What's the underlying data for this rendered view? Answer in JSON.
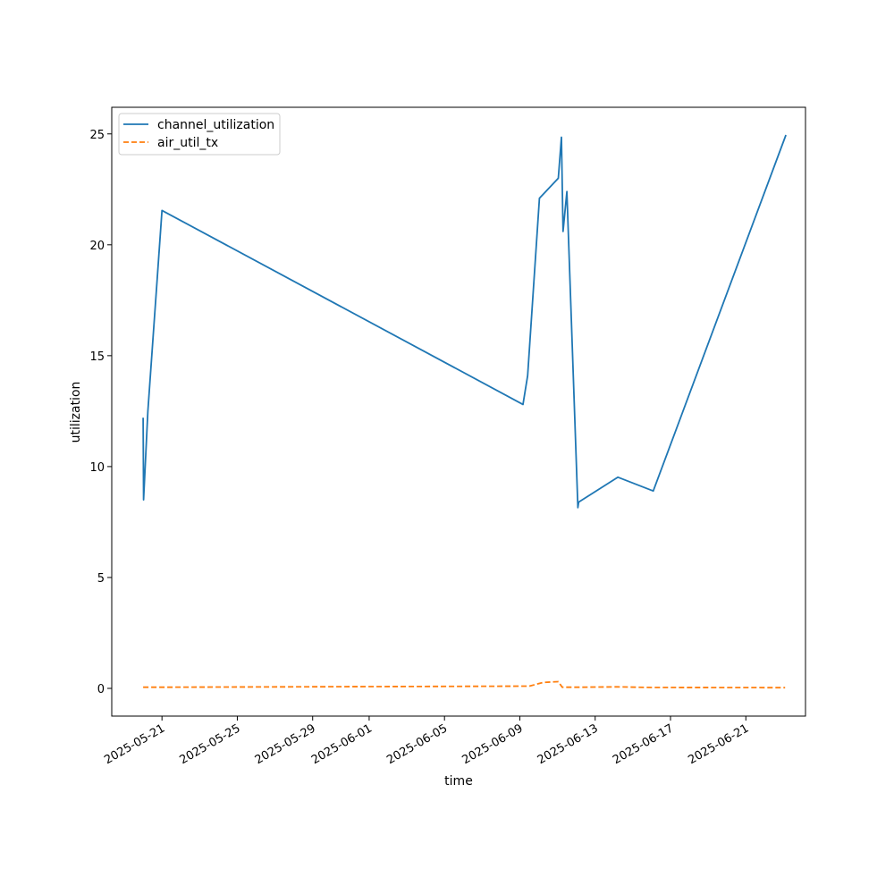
{
  "chart_data": {
    "type": "line",
    "xlabel": "time",
    "ylabel": "utilization",
    "x_axis_type": "date",
    "xlim": [
      "2025-05-18T08:00",
      "2025-06-24T04:00"
    ],
    "ylim": [
      -1.25,
      26.2
    ],
    "x_ticks": [
      "2025-05-21",
      "2025-05-25",
      "2025-05-29",
      "2025-06-01",
      "2025-06-05",
      "2025-06-09",
      "2025-06-13",
      "2025-06-17",
      "2025-06-21"
    ],
    "y_ticks": [
      "0",
      "5",
      "10",
      "15",
      "20",
      "25"
    ],
    "y_tick_values": [
      0,
      5,
      10,
      15,
      20,
      25
    ],
    "grid": false,
    "legend_position": "top-left",
    "colors": {
      "channel_utilization": "#1f77b4",
      "air_util_tx": "#ff7f0e"
    },
    "series": [
      {
        "name": "channel_utilization",
        "style": "solid",
        "points": [
          [
            "2025-05-20T00:00",
            12.2
          ],
          [
            "2025-05-20T00:30",
            8.5
          ],
          [
            "2025-05-20T06:00",
            12.5
          ],
          [
            "2025-05-20T18:00",
            18.5
          ],
          [
            "2025-05-21T00:00",
            21.55
          ],
          [
            "2025-06-09T04:00",
            12.8
          ],
          [
            "2025-06-09T10:00",
            14.1
          ],
          [
            "2025-06-10T01:00",
            22.1
          ],
          [
            "2025-06-11T01:00",
            23.0
          ],
          [
            "2025-06-11T05:00",
            24.85
          ],
          [
            "2025-06-11T07:00",
            20.6
          ],
          [
            "2025-06-11T12:00",
            22.4
          ],
          [
            "2025-06-12T02:00",
            8.15
          ],
          [
            "2025-06-12T03:00",
            8.4
          ],
          [
            "2025-06-14T05:00",
            9.52
          ],
          [
            "2025-06-16T02:00",
            8.9
          ],
          [
            "2025-06-23T03:00",
            24.95
          ]
        ]
      },
      {
        "name": "air_util_tx",
        "style": "dashed",
        "points": [
          [
            "2025-05-20T00:00",
            0.05
          ],
          [
            "2025-05-21T00:00",
            0.05
          ],
          [
            "2025-06-09T12:00",
            0.1
          ],
          [
            "2025-06-10T06:00",
            0.27
          ],
          [
            "2025-06-11T01:00",
            0.3
          ],
          [
            "2025-06-11T06:00",
            0.05
          ],
          [
            "2025-06-12T04:00",
            0.05
          ],
          [
            "2025-06-14T04:00",
            0.07
          ],
          [
            "2025-06-16T00:00",
            0.04
          ],
          [
            "2025-06-23T02:00",
            0.03
          ]
        ]
      }
    ]
  }
}
